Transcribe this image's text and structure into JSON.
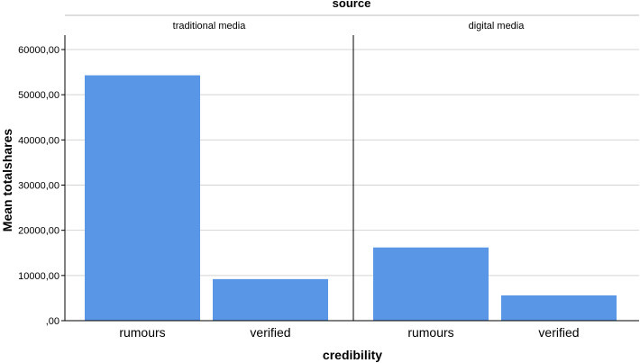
{
  "chart_data": {
    "type": "bar",
    "title": "source",
    "xlabel": "credibility",
    "ylabel": "Mean totalshares",
    "categories": [
      "rumours",
      "verified"
    ],
    "ylim": [
      0,
      60000
    ],
    "yticks": [
      0,
      10000,
      20000,
      30000,
      40000,
      50000,
      60000
    ],
    "ytick_labels": [
      ",00",
      "10000,00",
      "20000,00",
      "30000,00",
      "40000,00",
      "50000,00",
      "60000,00"
    ],
    "grid": true,
    "panels": [
      {
        "name": "traditional media",
        "values": [
          54300,
          9200
        ]
      },
      {
        "name": "digital media",
        "values": [
          16200,
          5600
        ]
      }
    ],
    "colors": {
      "bar": "#5a96e6",
      "grid": "#d4d4d4",
      "axis": "#000000"
    }
  }
}
